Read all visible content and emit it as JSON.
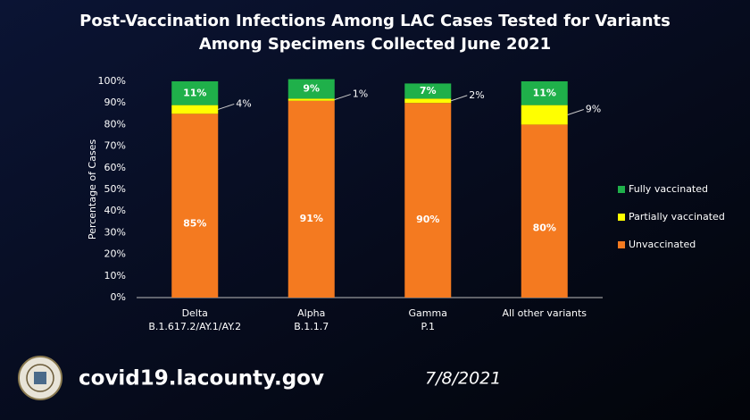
{
  "chart_data": {
    "type": "stacked_bar",
    "title": "Post-Vaccination Infections Among LAC Cases Tested for Variants",
    "subtitle": "Among Specimens Collected June 2021",
    "y_label": "Percentage of Cases",
    "categories": [
      [
        "Delta",
        "B.1.617.2/AY.1/AY.2"
      ],
      [
        "Alpha",
        "B.1.1.7"
      ],
      [
        "Gamma",
        "P.1"
      ],
      [
        "All other variants"
      ]
    ],
    "series": [
      {
        "name": "Unvaccinated",
        "color": "#f47a20",
        "values": [
          85,
          91,
          90,
          80
        ],
        "value_labels": [
          "85%",
          "91%",
          "90%",
          "80%"
        ]
      },
      {
        "name": "Partially vaccinated",
        "color": "#ffff00",
        "values": [
          4,
          1,
          2,
          9
        ],
        "value_labels": [
          "4%",
          "1%",
          "2%",
          "9%"
        ]
      },
      {
        "name": "Fully vaccinated",
        "color": "#1fb04a",
        "values": [
          11,
          9,
          7,
          11
        ],
        "value_labels": [
          "11%",
          "9%",
          "7%",
          "11%"
        ]
      }
    ],
    "ylim": [
      0,
      100
    ],
    "yticks": [
      {
        "value": 0,
        "label": "0%"
      },
      {
        "value": 10,
        "label": "10%"
      },
      {
        "value": 20,
        "label": "20%"
      },
      {
        "value": 30,
        "label": "30%"
      },
      {
        "value": 40,
        "label": "40%"
      },
      {
        "value": 50,
        "label": "50%"
      },
      {
        "value": 60,
        "label": "60%"
      },
      {
        "value": 70,
        "label": "70%"
      },
      {
        "value": 80,
        "label": "80%"
      },
      {
        "value": 90,
        "label": "90%"
      },
      {
        "value": 100,
        "label": "100%"
      }
    ],
    "grid": false,
    "legend": "right"
  },
  "footer": {
    "website": "covid19.lacounty.gov",
    "date": "7/8/2021"
  }
}
